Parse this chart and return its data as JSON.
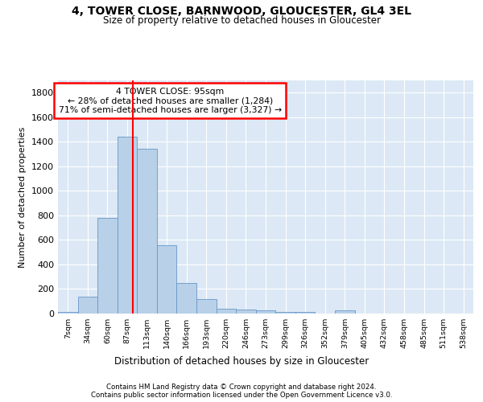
{
  "title1": "4, TOWER CLOSE, BARNWOOD, GLOUCESTER, GL4 3EL",
  "title2": "Size of property relative to detached houses in Gloucester",
  "xlabel": "Distribution of detached houses by size in Gloucester",
  "ylabel": "Number of detached properties",
  "bar_labels": [
    "7sqm",
    "34sqm",
    "60sqm",
    "87sqm",
    "113sqm",
    "140sqm",
    "166sqm",
    "193sqm",
    "220sqm",
    "246sqm",
    "273sqm",
    "299sqm",
    "326sqm",
    "352sqm",
    "379sqm",
    "405sqm",
    "432sqm",
    "458sqm",
    "485sqm",
    "511sqm",
    "538sqm"
  ],
  "bar_values": [
    10,
    135,
    780,
    1440,
    1340,
    560,
    250,
    120,
    40,
    30,
    25,
    15,
    15,
    0,
    25,
    0,
    0,
    0,
    0,
    0,
    0
  ],
  "bar_color": "#b8d0e8",
  "bar_edge_color": "#6898c8",
  "annotation_text": "4 TOWER CLOSE: 95sqm\n← 28% of detached houses are smaller (1,284)\n71% of semi-detached houses are larger (3,327) →",
  "annotation_box_color": "white",
  "annotation_box_edge_color": "red",
  "ylim": [
    0,
    1900
  ],
  "yticks": [
    0,
    200,
    400,
    600,
    800,
    1000,
    1200,
    1400,
    1600,
    1800
  ],
  "footer1": "Contains HM Land Registry data © Crown copyright and database right 2024.",
  "footer2": "Contains public sector information licensed under the Open Government Licence v3.0.",
  "plot_bg_color": "#dce8f5"
}
